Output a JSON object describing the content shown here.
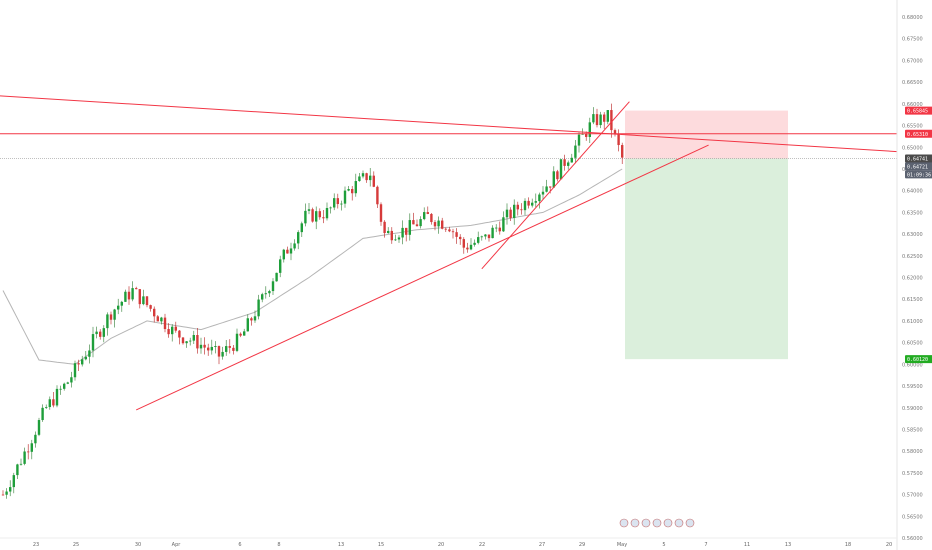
{
  "chart_data": {
    "type": "candlestick",
    "instrument_note": "",
    "y_axis": {
      "side": "right",
      "range": [
        0.5625,
        0.683
      ],
      "tick_labels": [
        "0.68000",
        "0.67500",
        "0.67000",
        "0.66500",
        "0.66000",
        "0.65500",
        "0.65000",
        "0.64500",
        "0.64000",
        "0.63500",
        "0.63000",
        "0.62500",
        "0.62000",
        "0.61500",
        "0.61000",
        "0.60500",
        "0.60000",
        "0.59500",
        "0.59000",
        "0.58500",
        "0.58000",
        "0.57500",
        "0.57000",
        "0.56500",
        "0.56000"
      ],
      "tick_values": [
        0.68,
        0.675,
        0.67,
        0.665,
        0.66,
        0.655,
        0.65,
        0.645,
        0.64,
        0.635,
        0.63,
        0.625,
        0.62,
        0.615,
        0.61,
        0.605,
        0.6,
        0.595,
        0.59,
        0.585,
        0.58,
        0.575,
        0.57,
        0.565,
        0.56
      ]
    },
    "x_axis": {
      "tick_labels": [
        "23",
        "25",
        "30",
        "Apr",
        "6",
        "8",
        "13",
        "15",
        "20",
        "22",
        "27",
        "29",
        "May",
        "5",
        "7",
        "11",
        "13",
        "18",
        "20"
      ]
    },
    "badges": [
      {
        "label": "0.65845",
        "value": 0.65845,
        "color": "#f23645"
      },
      {
        "label": "0.65310",
        "value": 0.6531,
        "color": "#f23645"
      },
      {
        "label": "0.64741",
        "value": 0.64741,
        "color": "#4a4a4a"
      },
      {
        "label": "0.64721",
        "value": 0.64721,
        "color": "#5b6270"
      },
      {
        "label": "01:09:36",
        "color": "#5b6270"
      },
      {
        "label": "0.60120",
        "value": 0.6012,
        "color": "#22ab22"
      }
    ],
    "price_anchors": [
      {
        "bar": 0,
        "price": 0.57
      },
      {
        "bar": 5,
        "price": 0.578
      },
      {
        "bar": 12,
        "price": 0.59
      },
      {
        "bar": 18,
        "price": 0.596
      },
      {
        "bar": 24,
        "price": 0.604
      },
      {
        "bar": 30,
        "price": 0.612
      },
      {
        "bar": 36,
        "price": 0.617
      },
      {
        "bar": 42,
        "price": 0.612
      },
      {
        "bar": 48,
        "price": 0.607
      },
      {
        "bar": 54,
        "price": 0.605
      },
      {
        "bar": 60,
        "price": 0.602
      },
      {
        "bar": 66,
        "price": 0.606
      },
      {
        "bar": 72,
        "price": 0.615
      },
      {
        "bar": 78,
        "price": 0.625
      },
      {
        "bar": 84,
        "price": 0.634
      },
      {
        "bar": 90,
        "price": 0.635
      },
      {
        "bar": 96,
        "price": 0.64
      },
      {
        "bar": 102,
        "price": 0.644
      },
      {
        "bar": 106,
        "price": 0.63
      },
      {
        "bar": 112,
        "price": 0.631
      },
      {
        "bar": 118,
        "price": 0.634
      },
      {
        "bar": 124,
        "price": 0.632
      },
      {
        "bar": 128,
        "price": 0.627
      },
      {
        "bar": 134,
        "price": 0.629
      },
      {
        "bar": 140,
        "price": 0.634
      },
      {
        "bar": 146,
        "price": 0.638
      },
      {
        "bar": 152,
        "price": 0.642
      },
      {
        "bar": 158,
        "price": 0.649
      },
      {
        "bar": 164,
        "price": 0.656
      },
      {
        "bar": 168,
        "price": 0.657
      },
      {
        "bar": 172,
        "price": 0.6474
      }
    ],
    "moving_average_anchors": [
      {
        "bar": 0,
        "price": 0.617
      },
      {
        "bar": 10,
        "price": 0.601
      },
      {
        "bar": 20,
        "price": 0.6
      },
      {
        "bar": 30,
        "price": 0.606
      },
      {
        "bar": 40,
        "price": 0.61
      },
      {
        "bar": 55,
        "price": 0.608
      },
      {
        "bar": 70,
        "price": 0.612
      },
      {
        "bar": 85,
        "price": 0.62
      },
      {
        "bar": 100,
        "price": 0.629
      },
      {
        "bar": 115,
        "price": 0.631
      },
      {
        "bar": 130,
        "price": 0.632
      },
      {
        "bar": 150,
        "price": 0.635
      },
      {
        "bar": 160,
        "price": 0.639
      },
      {
        "bar": 172,
        "price": 0.645
      }
    ],
    "trendlines": [
      {
        "from": {
          "bar": -4,
          "price": 0.662
        },
        "to": {
          "bar": 250,
          "price": 0.649
        }
      },
      {
        "from": {
          "bar": 37,
          "price": 0.5895
        },
        "to": {
          "bar": 196,
          "price": 0.6505
        }
      },
      {
        "from": {
          "bar": 133,
          "price": 0.622
        },
        "to": {
          "bar": 174,
          "price": 0.6605
        }
      },
      {
        "from": {
          "bar": -4,
          "price": 0.6531
        },
        "to": {
          "bar": 250,
          "price": 0.6531
        }
      }
    ],
    "position": {
      "entry": 0.64741,
      "stop": 0.65845,
      "target": 0.6012
    },
    "colors": {
      "up": "#26a69a",
      "up_body": "#1e9e3a",
      "down": "#ef5350",
      "down_body": "#d63a3a",
      "ma": "#b5b5b5",
      "trend": "#f23645",
      "stop_zone": "rgba(242,54,69,0.18)",
      "target_zone": "rgba(76,175,80,0.20)"
    }
  }
}
